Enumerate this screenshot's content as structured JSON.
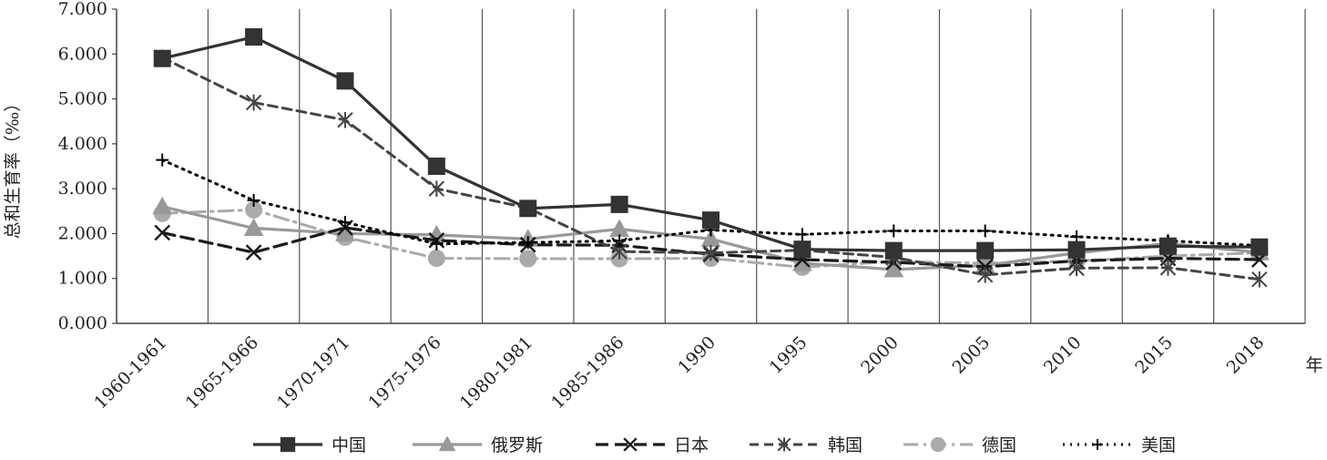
{
  "chart_data": {
    "type": "line",
    "categories": [
      "1960-1961",
      "1965-1966",
      "1970-1971",
      "1975-1976",
      "1980-1981",
      "1985-1986",
      "1990",
      "1995",
      "2000",
      "2005",
      "2010",
      "2015",
      "2018"
    ],
    "ylabel": "总和生育率（‰）",
    "xunit": "年",
    "ylim": [
      0,
      7
    ],
    "yticks": [
      "0.000",
      "1.000",
      "2.000",
      "3.000",
      "4.000",
      "5.000",
      "6.000",
      "7.000"
    ],
    "grid": "vertical",
    "legend_position": "bottom",
    "series": [
      {
        "name": "中国",
        "style": "solid-square",
        "color": "#333333",
        "values": [
          5.9,
          6.38,
          5.4,
          3.5,
          2.56,
          2.65,
          2.3,
          1.65,
          1.62,
          1.62,
          1.64,
          1.72,
          1.7
        ]
      },
      {
        "name": "俄罗斯",
        "style": "solid-triangle",
        "color": "#999999",
        "values": [
          2.6,
          2.12,
          2.0,
          1.97,
          1.88,
          2.1,
          1.88,
          1.34,
          1.2,
          1.29,
          1.57,
          1.78,
          1.58
        ]
      },
      {
        "name": "日本",
        "style": "solid-x",
        "color": "#1a1a1a",
        "values": [
          2.02,
          1.58,
          2.13,
          1.85,
          1.75,
          1.74,
          1.54,
          1.42,
          1.36,
          1.26,
          1.39,
          1.45,
          1.42
        ]
      },
      {
        "name": "韩国",
        "style": "dash-asterisk",
        "color": "#444444",
        "values": [
          5.92,
          4.92,
          4.53,
          3.0,
          2.57,
          1.6,
          1.57,
          1.63,
          1.47,
          1.08,
          1.23,
          1.24,
          0.98
        ]
      },
      {
        "name": "德国",
        "style": "dashdot-circle",
        "color": "#aaaaaa",
        "values": [
          2.45,
          2.53,
          1.92,
          1.45,
          1.44,
          1.44,
          1.45,
          1.25,
          1.38,
          1.34,
          1.39,
          1.5,
          1.57
        ]
      },
      {
        "name": "美国",
        "style": "dotted-plus",
        "color": "#000000",
        "values": [
          3.64,
          2.74,
          2.25,
          1.77,
          1.8,
          1.84,
          2.08,
          1.98,
          2.06,
          2.06,
          1.93,
          1.84,
          1.73
        ]
      }
    ]
  }
}
